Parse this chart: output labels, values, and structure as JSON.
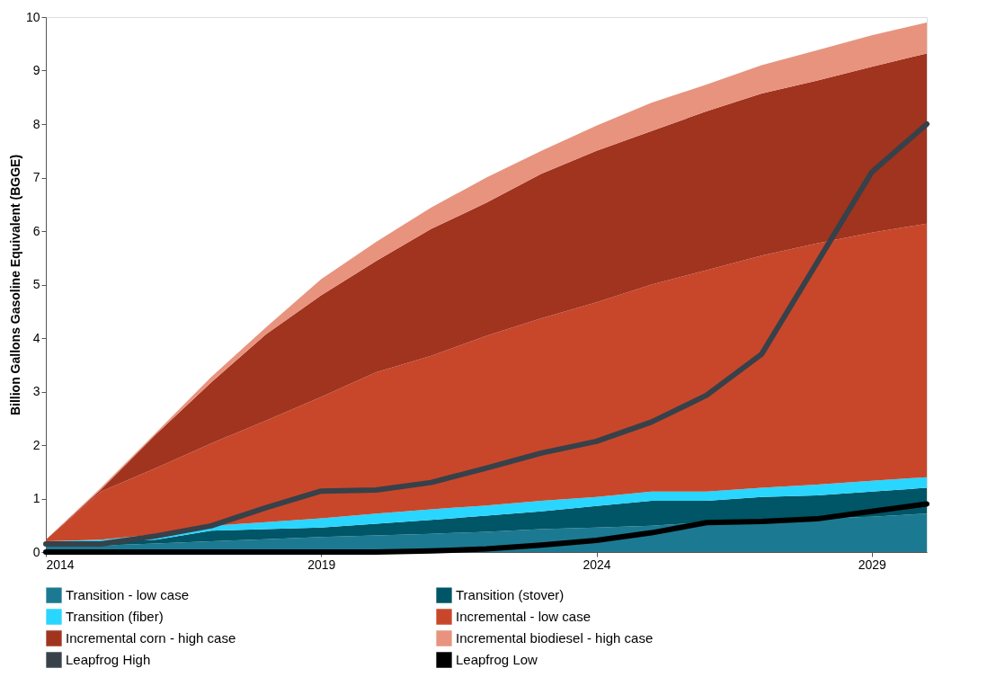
{
  "chart_data": {
    "type": "area",
    "stacked": true,
    "ylabel": "Billion Gallons Gasoline Equivalent (BGGE)",
    "x": [
      2014,
      2015,
      2016,
      2017,
      2018,
      2019,
      2020,
      2021,
      2022,
      2023,
      2024,
      2025,
      2026,
      2027,
      2028,
      2029,
      2030
    ],
    "xlim": [
      2014,
      2030
    ],
    "xticks": [
      2014,
      2019,
      2024,
      2029
    ],
    "ylim": [
      0,
      10
    ],
    "yticks": [
      0,
      1,
      2,
      3,
      4,
      5,
      6,
      7,
      8,
      9,
      10
    ],
    "grid": false,
    "legend": "bottom",
    "series": [
      {
        "name": "Transition - low case",
        "color": "#1b7a92",
        "values": [
          0.1,
          0.12,
          0.16,
          0.2,
          0.24,
          0.28,
          0.31,
          0.34,
          0.38,
          0.43,
          0.46,
          0.49,
          0.56,
          0.6,
          0.63,
          0.66,
          0.72
        ]
      },
      {
        "name": "Transition (stover)",
        "color": "#005566",
        "values": [
          0.05,
          0.08,
          0.07,
          0.2,
          0.19,
          0.18,
          0.22,
          0.26,
          0.3,
          0.33,
          0.4,
          0.47,
          0.4,
          0.43,
          0.43,
          0.47,
          0.48
        ]
      },
      {
        "name": "Transition (fiber)",
        "color": "#29d6ff",
        "values": [
          0.05,
          0.03,
          0.1,
          0.09,
          0.13,
          0.17,
          0.19,
          0.2,
          0.19,
          0.2,
          0.17,
          0.17,
          0.17,
          0.17,
          0.2,
          0.2,
          0.2
        ]
      },
      {
        "name": "Incremental - low case",
        "color": "#c8472b",
        "values": [
          0.03,
          0.9,
          1.24,
          1.54,
          1.9,
          2.27,
          2.64,
          2.87,
          3.17,
          3.41,
          3.64,
          3.87,
          4.14,
          4.34,
          4.51,
          4.64,
          4.74
        ]
      },
      {
        "name": "Incremental corn - high case",
        "color": "#a0341f",
        "values": [
          0,
          0.04,
          0.63,
          1.14,
          1.61,
          1.9,
          2.08,
          2.37,
          2.49,
          2.7,
          2.83,
          2.87,
          2.97,
          3.03,
          3.04,
          3.1,
          3.18
        ]
      },
      {
        "name": "Incremental biodiesel - high case",
        "color": "#e8937e",
        "values": [
          0,
          0.03,
          0.03,
          0.1,
          0.13,
          0.3,
          0.36,
          0.4,
          0.47,
          0.43,
          0.47,
          0.53,
          0.5,
          0.53,
          0.57,
          0.59,
          0.58
        ]
      },
      {
        "name": "Leapfrog High",
        "type": "line",
        "color": "#37414a",
        "values": [
          0.15,
          0.15,
          0.3,
          0.49,
          0.83,
          1.14,
          1.16,
          1.3,
          1.57,
          1.85,
          2.07,
          2.43,
          2.93,
          3.7,
          5.4,
          7.1,
          8.0
        ]
      },
      {
        "name": "Leapfrog Low",
        "type": "line",
        "color": "#000000",
        "values": [
          0,
          0,
          0,
          0,
          0,
          0,
          0,
          0.02,
          0.06,
          0.13,
          0.22,
          0.36,
          0.55,
          0.57,
          0.62,
          0.76,
          0.9
        ]
      }
    ]
  }
}
